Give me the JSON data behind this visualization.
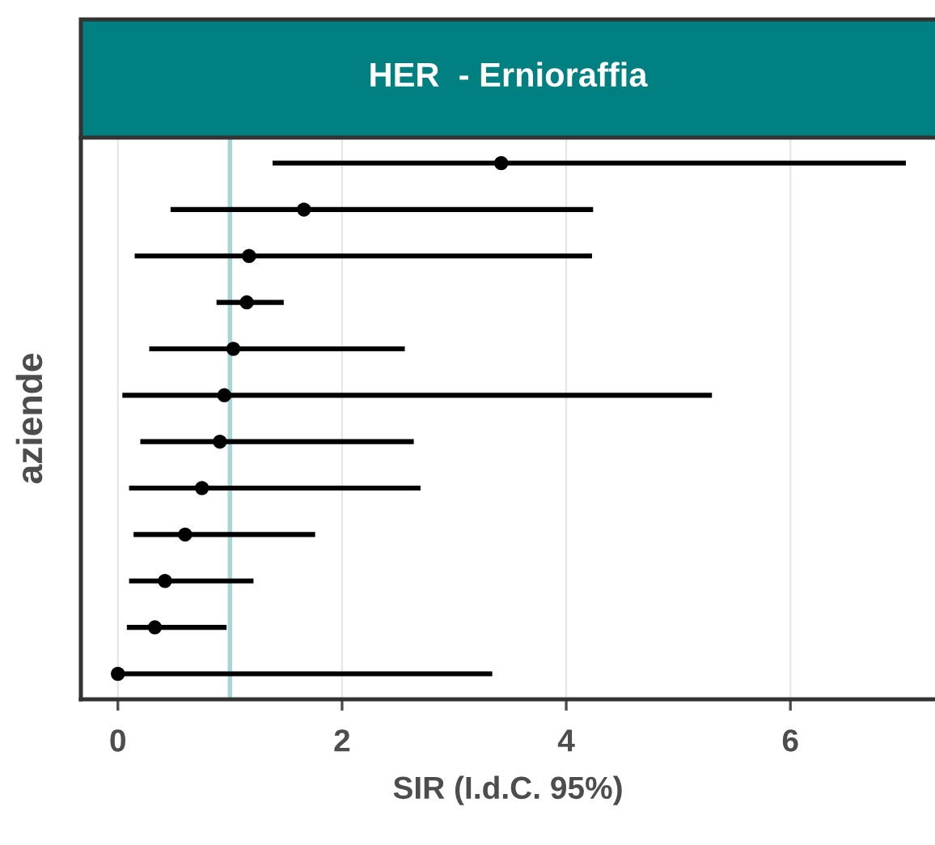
{
  "chart_data": {
    "type": "scatter",
    "orientation": "horizontal",
    "title": "HER  - Ernioraffia",
    "xlabel": "SIR (I.d.C. 95%)",
    "ylabel": "aziende",
    "categories": [
      null,
      null,
      null,
      null,
      null,
      null,
      null,
      null,
      null,
      null,
      null,
      null
    ],
    "values": [
      3.42,
      1.66,
      1.17,
      1.15,
      1.03,
      0.95,
      0.91,
      0.75,
      0.6,
      0.42,
      0.33,
      0.0
    ],
    "errors": [
      [
        1.38,
        7.03
      ],
      [
        0.47,
        4.24
      ],
      [
        0.15,
        4.23
      ],
      [
        0.88,
        1.48
      ],
      [
        0.28,
        2.56
      ],
      [
        0.04,
        5.3
      ],
      [
        0.2,
        2.64
      ],
      [
        0.1,
        2.7
      ],
      [
        0.14,
        1.76
      ],
      [
        0.1,
        1.21
      ],
      [
        0.08,
        0.97
      ],
      [
        0.0,
        3.34
      ]
    ],
    "color": "#000000",
    "marker": "circle",
    "xlim": [
      -0.33,
      7.29
    ],
    "xticks": [
      0,
      2,
      4,
      6
    ],
    "ref_lines": [
      {
        "axis": "x",
        "value": 1,
        "color": "#a8d5d8"
      }
    ],
    "grid": "x",
    "tick_labels": "x"
  }
}
